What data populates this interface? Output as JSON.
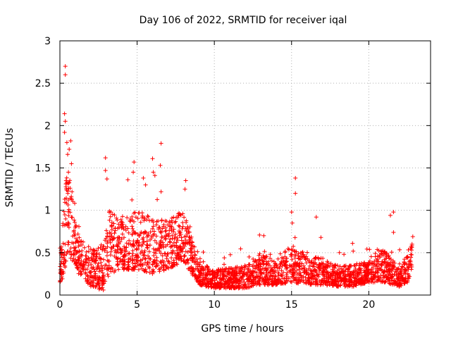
{
  "chart_data": {
    "type": "scatter",
    "title": "Day 106 of 2022, SRMTID for receiver iqal",
    "xlabel": "GPS time / hours",
    "ylabel": "SRMTID / TECUs",
    "xlim": [
      0,
      24
    ],
    "ylim": [
      0,
      3
    ],
    "x_ticks": [
      0,
      5,
      10,
      15,
      20
    ],
    "x_tick_labels": [
      "0",
      "5",
      "10",
      "15",
      "20"
    ],
    "y_ticks": [
      0,
      0.5,
      1,
      1.5,
      2,
      2.5,
      3
    ],
    "y_tick_labels": [
      "0",
      "0.5",
      "1",
      "1.5",
      "2",
      "2.5",
      "3"
    ],
    "grid": true,
    "marker": "+",
    "series": [
      {
        "name": "SRMTID",
        "color": "#ff0000",
        "envelope": [
          {
            "t": 0.0,
            "lo": 0.15,
            "hi": 0.3
          },
          {
            "t": 0.2,
            "lo": 0.2,
            "hi": 0.9
          },
          {
            "t": 0.5,
            "lo": 0.5,
            "hi": 1.6
          },
          {
            "t": 0.8,
            "lo": 0.4,
            "hi": 1.2
          },
          {
            "t": 1.2,
            "lo": 0.25,
            "hi": 0.7
          },
          {
            "t": 2.0,
            "lo": 0.1,
            "hi": 0.55
          },
          {
            "t": 2.8,
            "lo": 0.05,
            "hi": 0.6
          },
          {
            "t": 3.2,
            "lo": 0.25,
            "hi": 1.0
          },
          {
            "t": 4.0,
            "lo": 0.3,
            "hi": 0.9
          },
          {
            "t": 5.0,
            "lo": 0.3,
            "hi": 1.0
          },
          {
            "t": 6.0,
            "lo": 0.25,
            "hi": 0.9
          },
          {
            "t": 7.0,
            "lo": 0.3,
            "hi": 0.9
          },
          {
            "t": 8.0,
            "lo": 0.4,
            "hi": 1.0
          },
          {
            "t": 8.5,
            "lo": 0.25,
            "hi": 0.7
          },
          {
            "t": 9.0,
            "lo": 0.12,
            "hi": 0.4
          },
          {
            "t": 10.0,
            "lo": 0.08,
            "hi": 0.3
          },
          {
            "t": 11.0,
            "lo": 0.08,
            "hi": 0.32
          },
          {
            "t": 12.0,
            "lo": 0.08,
            "hi": 0.35
          },
          {
            "t": 13.0,
            "lo": 0.12,
            "hi": 0.5
          },
          {
            "t": 14.0,
            "lo": 0.12,
            "hi": 0.4
          },
          {
            "t": 15.0,
            "lo": 0.15,
            "hi": 0.6
          },
          {
            "t": 16.0,
            "lo": 0.12,
            "hi": 0.45
          },
          {
            "t": 17.0,
            "lo": 0.12,
            "hi": 0.45
          },
          {
            "t": 18.0,
            "lo": 0.1,
            "hi": 0.35
          },
          {
            "t": 19.0,
            "lo": 0.1,
            "hi": 0.35
          },
          {
            "t": 20.0,
            "lo": 0.15,
            "hi": 0.4
          },
          {
            "t": 21.0,
            "lo": 0.15,
            "hi": 0.55
          },
          {
            "t": 22.0,
            "lo": 0.1,
            "hi": 0.3
          },
          {
            "t": 22.5,
            "lo": 0.15,
            "hi": 0.5
          },
          {
            "t": 22.8,
            "lo": 0.3,
            "hi": 0.65
          }
        ],
        "approx_count": 2600,
        "notable_points": [
          {
            "x": 0.35,
            "y": 2.7
          },
          {
            "x": 0.35,
            "y": 2.6
          },
          {
            "x": 0.3,
            "y": 2.14
          },
          {
            "x": 0.35,
            "y": 2.05
          },
          {
            "x": 0.3,
            "y": 1.92
          },
          {
            "x": 0.45,
            "y": 1.8
          },
          {
            "x": 0.7,
            "y": 1.82
          },
          {
            "x": 0.6,
            "y": 1.72
          },
          {
            "x": 0.5,
            "y": 1.66
          },
          {
            "x": 0.75,
            "y": 1.55
          },
          {
            "x": 0.55,
            "y": 1.45
          },
          {
            "x": 0.4,
            "y": 1.35
          },
          {
            "x": 2.95,
            "y": 1.62
          },
          {
            "x": 2.95,
            "y": 1.47
          },
          {
            "x": 3.05,
            "y": 1.37
          },
          {
            "x": 4.8,
            "y": 1.57
          },
          {
            "x": 4.75,
            "y": 1.45
          },
          {
            "x": 4.4,
            "y": 1.36
          },
          {
            "x": 5.4,
            "y": 1.38
          },
          {
            "x": 5.55,
            "y": 1.3
          },
          {
            "x": 6.0,
            "y": 1.61
          },
          {
            "x": 6.05,
            "y": 1.45
          },
          {
            "x": 6.15,
            "y": 1.41
          },
          {
            "x": 6.55,
            "y": 1.79
          },
          {
            "x": 6.5,
            "y": 1.53
          },
          {
            "x": 6.55,
            "y": 1.22
          },
          {
            "x": 8.15,
            "y": 1.35
          },
          {
            "x": 8.1,
            "y": 1.25
          },
          {
            "x": 15.25,
            "y": 1.38
          },
          {
            "x": 15.25,
            "y": 1.2
          },
          {
            "x": 15.0,
            "y": 0.98
          },
          {
            "x": 15.05,
            "y": 0.85
          },
          {
            "x": 16.6,
            "y": 0.92
          },
          {
            "x": 21.6,
            "y": 0.98
          },
          {
            "x": 21.4,
            "y": 0.94
          },
          {
            "x": 21.6,
            "y": 0.74
          },
          {
            "x": 22.85,
            "y": 0.69
          },
          {
            "x": 18.95,
            "y": 0.61
          },
          {
            "x": 13.2,
            "y": 0.7
          },
          {
            "x": 16.9,
            "y": 0.68
          }
        ]
      }
    ]
  }
}
